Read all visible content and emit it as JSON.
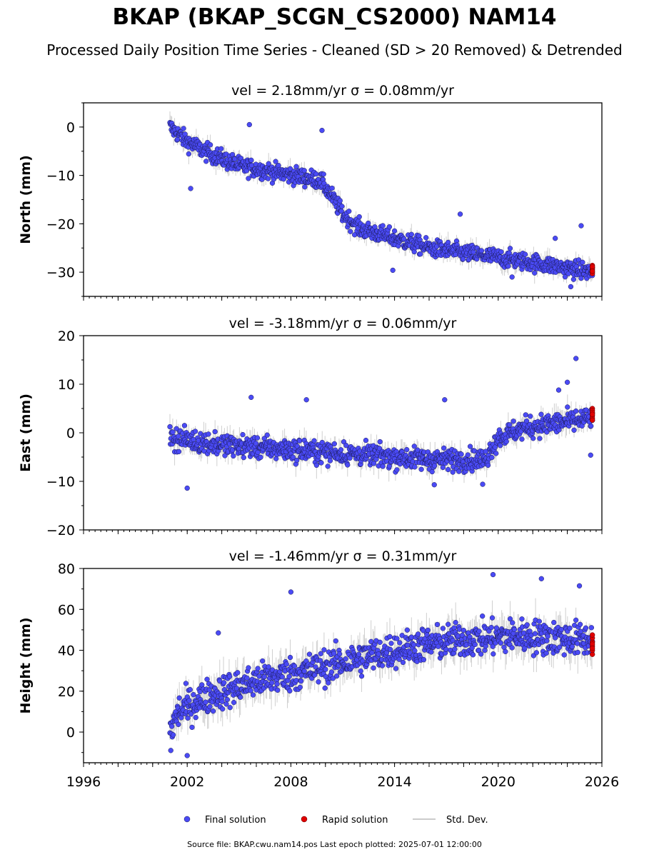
{
  "title": "BKAP (BKAP_SCGN_CS2000) NAM14",
  "subtitle": "Processed Daily Position Time Series - Cleaned (SD > 20 Removed) & Detrended",
  "footer": "Source file: BKAP.cwu.nam14.pos  Last epoch plotted: 2025-07-01 12:00:00",
  "colors": {
    "final": "#4a4af5",
    "final_edge": "#1a1a55",
    "rapid": "#e00000",
    "stddev": "#bbbbbb"
  },
  "legend": [
    {
      "label": "Final solution",
      "marker": "dot",
      "color": "#4a4af5"
    },
    {
      "label": "Rapid solution",
      "marker": "dot",
      "color": "#e00000"
    },
    {
      "label": "Std. Dev.",
      "marker": "line",
      "color": "#bbbbbb"
    }
  ],
  "chart_data": [
    {
      "type": "scatter",
      "title": "vel = 2.18mm/yr   σ = 0.08mm/yr",
      "ylabel": "North (mm)",
      "xlim": [
        1996,
        2026
      ],
      "ylim": [
        -35,
        5
      ],
      "yticks": [
        0,
        -10,
        -20,
        -30
      ],
      "ytick_labels": [
        "0",
        "−10",
        "−20",
        "−30"
      ],
      "x_start": 2001.0,
      "x_end": 2025.45,
      "trend_knots": [
        [
          2001.0,
          0
        ],
        [
          2002.0,
          -3
        ],
        [
          2003.0,
          -5
        ],
        [
          2005.0,
          -8
        ],
        [
          2009.7,
          -11
        ],
        [
          2010.3,
          -14
        ],
        [
          2011.0,
          -18
        ],
        [
          2012.0,
          -21
        ],
        [
          2014.0,
          -23
        ],
        [
          2016.0,
          -25
        ],
        [
          2018.0,
          -26
        ],
        [
          2020.0,
          -27
        ],
        [
          2022.0,
          -28
        ],
        [
          2025.45,
          -30
        ]
      ],
      "spread": 1.3,
      "outliers": [
        [
          2009.8,
          -0.7
        ],
        [
          2005.6,
          0.5
        ],
        [
          2017.8,
          -18
        ],
        [
          2024.8,
          -20.4
        ],
        [
          2023.3,
          -23
        ],
        [
          2002.2,
          -12.7
        ],
        [
          2013.9,
          -29.6
        ],
        [
          2020.8,
          -31
        ],
        [
          2024.2,
          -33
        ]
      ],
      "rapid": {
        "x": 2025.45,
        "values": [
          -28.6,
          -29,
          -29.5,
          -30,
          -30.3,
          -29.2,
          -28.9,
          -29.8
        ]
      }
    },
    {
      "type": "scatter",
      "title": "vel = -3.18mm/yr   σ = 0.06mm/yr",
      "ylabel": "East (mm)",
      "xlim": [
        1996,
        2026
      ],
      "ylim": [
        -20,
        20
      ],
      "yticks": [
        20,
        10,
        0,
        -10,
        -20
      ],
      "ytick_labels": [
        "20",
        "10",
        "0",
        "−10",
        "−20"
      ],
      "x_start": 2001.0,
      "x_end": 2025.45,
      "trend_knots": [
        [
          2001.0,
          -1
        ],
        [
          2004.0,
          -2.5
        ],
        [
          2008.0,
          -3.5
        ],
        [
          2012.0,
          -4.5
        ],
        [
          2016.0,
          -5.5
        ],
        [
          2019.3,
          -5.5
        ],
        [
          2019.6,
          -3
        ],
        [
          2020.0,
          -1
        ],
        [
          2021.5,
          1
        ],
        [
          2025.45,
          3
        ]
      ],
      "spread": 1.6,
      "outliers": [
        [
          2005.7,
          7.3
        ],
        [
          2008.9,
          6.8
        ],
        [
          2016.9,
          6.8
        ],
        [
          2024.5,
          15.3
        ],
        [
          2024.0,
          10.4
        ],
        [
          2023.5,
          8.8
        ],
        [
          2002.0,
          -11.4
        ],
        [
          2025.35,
          -4.6
        ],
        [
          2019.1,
          -10.6
        ],
        [
          2016.3,
          -10.7
        ]
      ],
      "rapid": {
        "x": 2025.45,
        "values": [
          5,
          4.6,
          4,
          3.5,
          3,
          2.6,
          4.2,
          3.8
        ]
      }
    },
    {
      "type": "scatter",
      "title": "vel = -1.46mm/yr   σ = 0.31mm/yr",
      "ylabel": "Height (mm)",
      "xlim": [
        1996,
        2026
      ],
      "ylim": [
        -15,
        80
      ],
      "yticks": [
        80,
        60,
        40,
        20,
        0
      ],
      "ytick_labels": [
        "80",
        "60",
        "40",
        "20",
        "0"
      ],
      "xticks": [
        1996,
        2002,
        2008,
        2014,
        2020,
        2026
      ],
      "xtick_labels": [
        "1996",
        "2002",
        "2008",
        "2014",
        "2020",
        "2026"
      ],
      "x_start": 2001.0,
      "x_end": 2025.45,
      "trend_knots": [
        [
          2001.0,
          0
        ],
        [
          2001.5,
          10
        ],
        [
          2003.0,
          17
        ],
        [
          2006.0,
          25
        ],
        [
          2009.0,
          30
        ],
        [
          2012.0,
          36
        ],
        [
          2015.0,
          42
        ],
        [
          2018.0,
          45
        ],
        [
          2021.0,
          47
        ],
        [
          2025.45,
          45
        ]
      ],
      "spread": 6,
      "outliers": [
        [
          2019.7,
          77
        ],
        [
          2022.5,
          75
        ],
        [
          2024.7,
          71.5
        ],
        [
          2008.0,
          68.5
        ],
        [
          2002.0,
          -11.5
        ],
        [
          2003.8,
          48.5
        ],
        [
          2001.05,
          -9
        ]
      ],
      "rapid": {
        "x": 2025.45,
        "values": [
          38,
          40,
          42,
          44,
          46,
          47.5,
          43,
          41
        ]
      }
    }
  ]
}
